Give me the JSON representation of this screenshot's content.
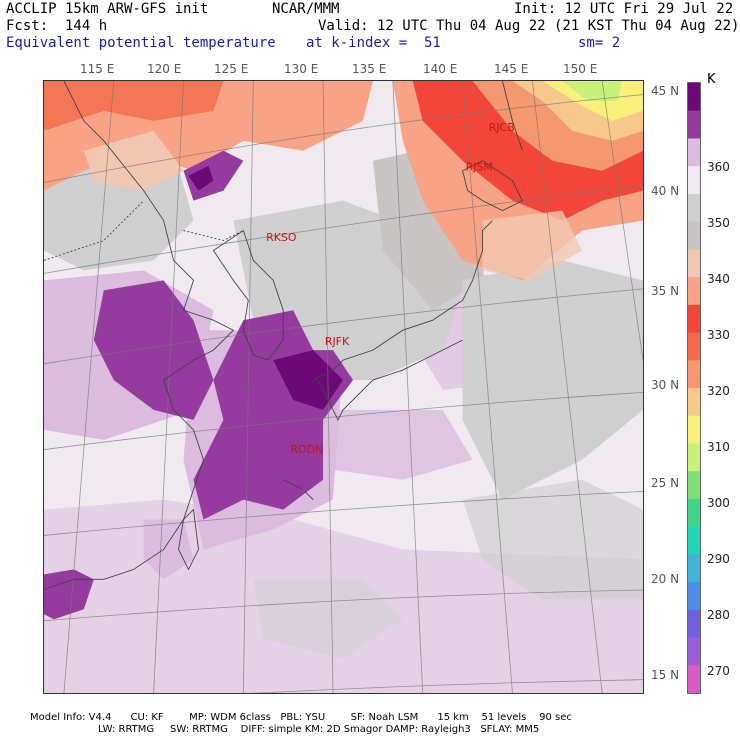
{
  "header": {
    "line1_left": "ACCLIP 15km ARW-GFS init",
    "line1_mid": "NCAR/MMM",
    "line1_right": "Init: 12 UTC Fri 29 Jul 22",
    "line2_left": "Fcst:  144 h",
    "line2_right": "Valid: 12 UTC Thu 04 Aug 22 (21 KST Thu 04 Aug 22)",
    "line3_left": "Equivalent potential temperature",
    "line3_mid": "at k-index =  51",
    "line3_right": "sm= 2"
  },
  "map": {
    "lon_labels": [
      "115 E",
      "120 E",
      "125 E",
      "130 E",
      "135 E",
      "140 E",
      "145 E",
      "150 E"
    ],
    "lat_labels": [
      "45 N",
      "40 N",
      "35 N",
      "30 N",
      "25 N",
      "20 N",
      "15 N"
    ],
    "stations": [
      {
        "name": "RJCB",
        "lon": 143.2,
        "lat": 42.7
      },
      {
        "name": "RJSM",
        "lon": 141.4,
        "lat": 40.7
      },
      {
        "name": "RKSO",
        "lon": 127.0,
        "lat": 37.1
      },
      {
        "name": "RJFK",
        "lon": 130.7,
        "lat": 31.8
      },
      {
        "name": "RODN",
        "lon": 127.8,
        "lat": 26.3
      }
    ]
  },
  "colorbar": {
    "unit": "K",
    "ticks": [
      "360",
      "350",
      "340",
      "330",
      "320",
      "310",
      "300",
      "290",
      "280",
      "270"
    ],
    "colors": {
      "gt370": "#6e0a78",
      "b365": "#953a9e",
      "b360": "#dbbcdf",
      "b355": "#f0eaf0",
      "b350": "#cfcfcf",
      "b345": "#c8c4c4",
      "b340": "#f1c7b2",
      "b335": "#f8a386",
      "b330": "#f2463a",
      "b325": "#f26a4a",
      "b320": "#f59870",
      "b315": "#f6c98a",
      "b310": "#f8f07a",
      "b305": "#c8f07a",
      "b300": "#7fe07a",
      "b295": "#3fd68a",
      "b290": "#20d8b8",
      "b285": "#3fb4d8",
      "b280": "#4a8ee8",
      "b275": "#7060e0",
      "b270": "#9c5ed8",
      "lt270": "#d85cc8"
    }
  },
  "footer": {
    "line1": "Model Info: V4.4      CU: KF        MP: WDM 6class   PBL: YSU        SF: Noah LSM      15 km    51 levels    90 sec",
    "line2": "LW: RRTMG     SW: RRTMG    DIFF: simple KM: 2D Smagor DAMP: Rayleigh3   SFLAY: MM5"
  }
}
